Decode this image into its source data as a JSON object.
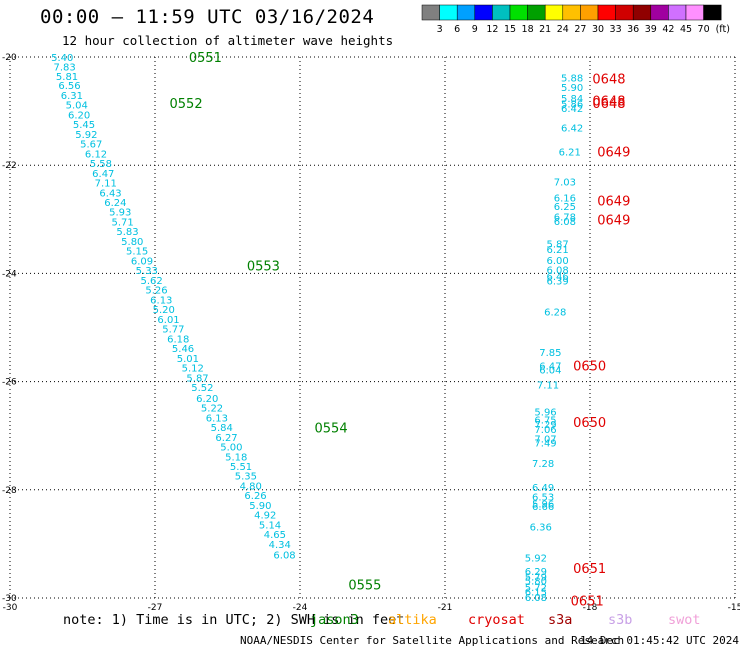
{
  "title": "00:00 — 11:59 UTC 03/16/2024",
  "subtitle": "12 hour collection of altimeter wave heights",
  "note": "note: 1) Time is in UTC; 2) SWH is in feet",
  "credit": "NOAA/NESDIS Center for Satellite Applications and Research",
  "timestamp": "14 Dec 01:45:42 UTC 2024",
  "satellites": [
    {
      "name": "jason3",
      "color": "#008000"
    },
    {
      "name": "altika",
      "color": "#FFA500"
    },
    {
      "name": "cryosat",
      "color": "#E00000"
    },
    {
      "name": "s3a",
      "color": "#A00000"
    },
    {
      "name": "s3b",
      "color": "#C8A0E6"
    },
    {
      "name": "swot",
      "color": "#F0A0D8"
    }
  ],
  "legend": {
    "labels": [
      "3",
      "6",
      "9",
      "12",
      "15",
      "18",
      "21",
      "24",
      "27",
      "30",
      "33",
      "36",
      "39",
      "42",
      "45",
      "70"
    ],
    "unit": "(ft)",
    "colors": [
      "#808080",
      "#00FFFF",
      "#00A0FF",
      "#0000FF",
      "#00C0C0",
      "#00E000",
      "#00A000",
      "#FFFF00",
      "#FFC000",
      "#FFA000",
      "#FF0000",
      "#D00000",
      "#900000",
      "#A000A0",
      "#D070FF",
      "#FF90FF",
      "#000000"
    ]
  },
  "chart_data": {
    "type": "scatter",
    "xlim": [
      -30,
      -15
    ],
    "ylim": [
      -30,
      -20
    ],
    "xticks": [
      "-30",
      "-27",
      "-24",
      "-21",
      "-18",
      "-15"
    ],
    "yticks": [
      "-20",
      "-22",
      "-24",
      "-26",
      "-28",
      "-30"
    ],
    "grid": true,
    "value_color": "#00C0E0",
    "passes": [
      {
        "label": "0551",
        "color": "#008000",
        "x": -26.3,
        "y": -20.0
      },
      {
        "label": "0552",
        "color": "#008000",
        "x": -26.7,
        "y": -20.85
      },
      {
        "label": "0553",
        "color": "#008000",
        "x": -25.1,
        "y": -23.85
      },
      {
        "label": "0554",
        "color": "#008000",
        "x": -23.7,
        "y": -26.85
      },
      {
        "label": "0555",
        "color": "#008000",
        "x": -23.0,
        "y": -29.75
      },
      {
        "label": "0648",
        "color": "#E00000",
        "x": -17.95,
        "y": -20.4
      },
      {
        "label": "0648",
        "color": "#E00000",
        "x": -17.95,
        "y": -20.8
      },
      {
        "label": "0648",
        "color": "#E00000",
        "x": -17.95,
        "y": -20.85
      },
      {
        "label": "0649",
        "color": "#E00000",
        "x": -17.85,
        "y": -21.75
      },
      {
        "label": "0649",
        "color": "#E00000",
        "x": -17.85,
        "y": -22.65
      },
      {
        "label": "0649",
        "color": "#E00000",
        "x": -17.85,
        "y": -23.0
      },
      {
        "label": "0650",
        "color": "#E00000",
        "x": -18.35,
        "y": -25.7
      },
      {
        "label": "0650",
        "color": "#E00000",
        "x": -18.35,
        "y": -26.75
      },
      {
        "label": "0651",
        "color": "#E00000",
        "x": -18.35,
        "y": -29.45
      },
      {
        "label": "0651",
        "color": "#E00000",
        "x": -18.4,
        "y": -30.05
      }
    ],
    "values": [
      {
        "x": -29.15,
        "y": -20.0,
        "v": "5.40"
      },
      {
        "x": -29.1,
        "y": -20.18,
        "v": "7.83"
      },
      {
        "x": -29.05,
        "y": -20.35,
        "v": "5.81"
      },
      {
        "x": -29.0,
        "y": -20.52,
        "v": "6.56"
      },
      {
        "x": -28.95,
        "y": -20.7,
        "v": "6.31"
      },
      {
        "x": -28.85,
        "y": -20.88,
        "v": "5.04"
      },
      {
        "x": -28.8,
        "y": -21.06,
        "v": "6.20"
      },
      {
        "x": -28.7,
        "y": -21.24,
        "v": "5.45"
      },
      {
        "x": -28.65,
        "y": -21.42,
        "v": "5.92"
      },
      {
        "x": -28.55,
        "y": -21.6,
        "v": "5.67"
      },
      {
        "x": -28.45,
        "y": -21.78,
        "v": "6.12"
      },
      {
        "x": -28.35,
        "y": -21.96,
        "v": "5.58"
      },
      {
        "x": -28.3,
        "y": -22.14,
        "v": "6.47"
      },
      {
        "x": -28.25,
        "y": -22.32,
        "v": "7.11"
      },
      {
        "x": -28.15,
        "y": -22.5,
        "v": "6.43"
      },
      {
        "x": -28.05,
        "y": -22.68,
        "v": "6.24"
      },
      {
        "x": -27.95,
        "y": -22.86,
        "v": "5.93"
      },
      {
        "x": -27.9,
        "y": -23.04,
        "v": "5.71"
      },
      {
        "x": -27.8,
        "y": -23.22,
        "v": "5.83"
      },
      {
        "x": -27.7,
        "y": -23.4,
        "v": "5.80"
      },
      {
        "x": -27.6,
        "y": -23.58,
        "v": "5.15"
      },
      {
        "x": -27.5,
        "y": -23.76,
        "v": "6.09"
      },
      {
        "x": -27.4,
        "y": -23.94,
        "v": "5.33"
      },
      {
        "x": -27.3,
        "y": -24.12,
        "v": "5.62"
      },
      {
        "x": -27.2,
        "y": -24.3,
        "v": "5.26"
      },
      {
        "x": -27.1,
        "y": -24.48,
        "v": "6.13"
      },
      {
        "x": -27.05,
        "y": -24.66,
        "v": "5.20"
      },
      {
        "x": -26.95,
        "y": -24.84,
        "v": "6.01"
      },
      {
        "x": -26.85,
        "y": -25.02,
        "v": "5.77"
      },
      {
        "x": -26.75,
        "y": -25.2,
        "v": "6.18"
      },
      {
        "x": -26.65,
        "y": -25.38,
        "v": "5.46"
      },
      {
        "x": -26.55,
        "y": -25.56,
        "v": "5.01"
      },
      {
        "x": -26.45,
        "y": -25.74,
        "v": "5.12"
      },
      {
        "x": -26.35,
        "y": -25.92,
        "v": "5.87"
      },
      {
        "x": -26.25,
        "y": -26.1,
        "v": "5.52"
      },
      {
        "x": -26.15,
        "y": -26.3,
        "v": "6.20"
      },
      {
        "x": -26.05,
        "y": -26.48,
        "v": "5.22"
      },
      {
        "x": -25.95,
        "y": -26.66,
        "v": "6.13"
      },
      {
        "x": -25.85,
        "y": -26.84,
        "v": "5.84"
      },
      {
        "x": -25.75,
        "y": -27.02,
        "v": "6.27"
      },
      {
        "x": -25.65,
        "y": -27.2,
        "v": "5.00"
      },
      {
        "x": -25.55,
        "y": -27.38,
        "v": "5.18"
      },
      {
        "x": -25.45,
        "y": -27.56,
        "v": "5.51"
      },
      {
        "x": -25.35,
        "y": -27.74,
        "v": "5.35"
      },
      {
        "x": -25.25,
        "y": -27.92,
        "v": "4.80"
      },
      {
        "x": -25.15,
        "y": -28.1,
        "v": "6.26"
      },
      {
        "x": -25.05,
        "y": -28.28,
        "v": "5.90"
      },
      {
        "x": -24.95,
        "y": -28.46,
        "v": "4.92"
      },
      {
        "x": -24.85,
        "y": -28.64,
        "v": "5.14"
      },
      {
        "x": -24.75,
        "y": -28.82,
        "v": "4.65"
      },
      {
        "x": -24.65,
        "y": -29.0,
        "v": "4.34"
      },
      {
        "x": -24.55,
        "y": -29.2,
        "v": "6.08"
      },
      {
        "x": -18.6,
        "y": -20.38,
        "v": "5.88"
      },
      {
        "x": -18.6,
        "y": -20.55,
        "v": "5.90"
      },
      {
        "x": -18.6,
        "y": -20.76,
        "v": "5.84"
      },
      {
        "x": -18.6,
        "y": -20.86,
        "v": "5.86"
      },
      {
        "x": -18.6,
        "y": -20.94,
        "v": "6.42"
      },
      {
        "x": -18.6,
        "y": -21.3,
        "v": "6.42"
      },
      {
        "x": -18.65,
        "y": -21.75,
        "v": "6.21"
      },
      {
        "x": -18.75,
        "y": -22.3,
        "v": "7.03"
      },
      {
        "x": -18.75,
        "y": -22.6,
        "v": "6.16"
      },
      {
        "x": -18.75,
        "y": -22.75,
        "v": "6.25"
      },
      {
        "x": -18.75,
        "y": -22.95,
        "v": "6.78"
      },
      {
        "x": -18.75,
        "y": -23.03,
        "v": "6.08"
      },
      {
        "x": -18.9,
        "y": -23.45,
        "v": "5.87"
      },
      {
        "x": -18.9,
        "y": -23.55,
        "v": "6.21"
      },
      {
        "x": -18.9,
        "y": -23.75,
        "v": "6.00"
      },
      {
        "x": -18.9,
        "y": -23.93,
        "v": "6.08"
      },
      {
        "x": -18.9,
        "y": -24.05,
        "v": "6.46"
      },
      {
        "x": -18.9,
        "y": -24.13,
        "v": "6.39"
      },
      {
        "x": -18.95,
        "y": -24.7,
        "v": "6.28"
      },
      {
        "x": -19.05,
        "y": -25.45,
        "v": "7.85"
      },
      {
        "x": -19.05,
        "y": -25.7,
        "v": "6.47"
      },
      {
        "x": -19.05,
        "y": -25.78,
        "v": "6.04"
      },
      {
        "x": -19.1,
        "y": -26.05,
        "v": "7.11"
      },
      {
        "x": -19.15,
        "y": -26.55,
        "v": "5.96"
      },
      {
        "x": -19.15,
        "y": -26.7,
        "v": "6.75"
      },
      {
        "x": -19.15,
        "y": -26.78,
        "v": "7.29"
      },
      {
        "x": -19.15,
        "y": -26.88,
        "v": "7.06"
      },
      {
        "x": -19.15,
        "y": -27.05,
        "v": "7.07"
      },
      {
        "x": -19.15,
        "y": -27.13,
        "v": "7.49"
      },
      {
        "x": -19.2,
        "y": -27.5,
        "v": "7.28"
      },
      {
        "x": -19.2,
        "y": -27.95,
        "v": "6.49"
      },
      {
        "x": -19.2,
        "y": -28.12,
        "v": "6.53"
      },
      {
        "x": -19.2,
        "y": -28.25,
        "v": "5.96"
      },
      {
        "x": -19.2,
        "y": -28.3,
        "v": "6.66"
      },
      {
        "x": -19.25,
        "y": -28.68,
        "v": "6.36"
      },
      {
        "x": -19.35,
        "y": -29.25,
        "v": "5.92"
      },
      {
        "x": -19.35,
        "y": -29.5,
        "v": "6.29"
      },
      {
        "x": -19.35,
        "y": -29.6,
        "v": "5.79"
      },
      {
        "x": -19.35,
        "y": -29.68,
        "v": "5.80"
      },
      {
        "x": -19.35,
        "y": -29.8,
        "v": "5.72"
      },
      {
        "x": -19.35,
        "y": -29.88,
        "v": "6.15"
      },
      {
        "x": -19.35,
        "y": -29.98,
        "v": "6.08"
      }
    ]
  }
}
